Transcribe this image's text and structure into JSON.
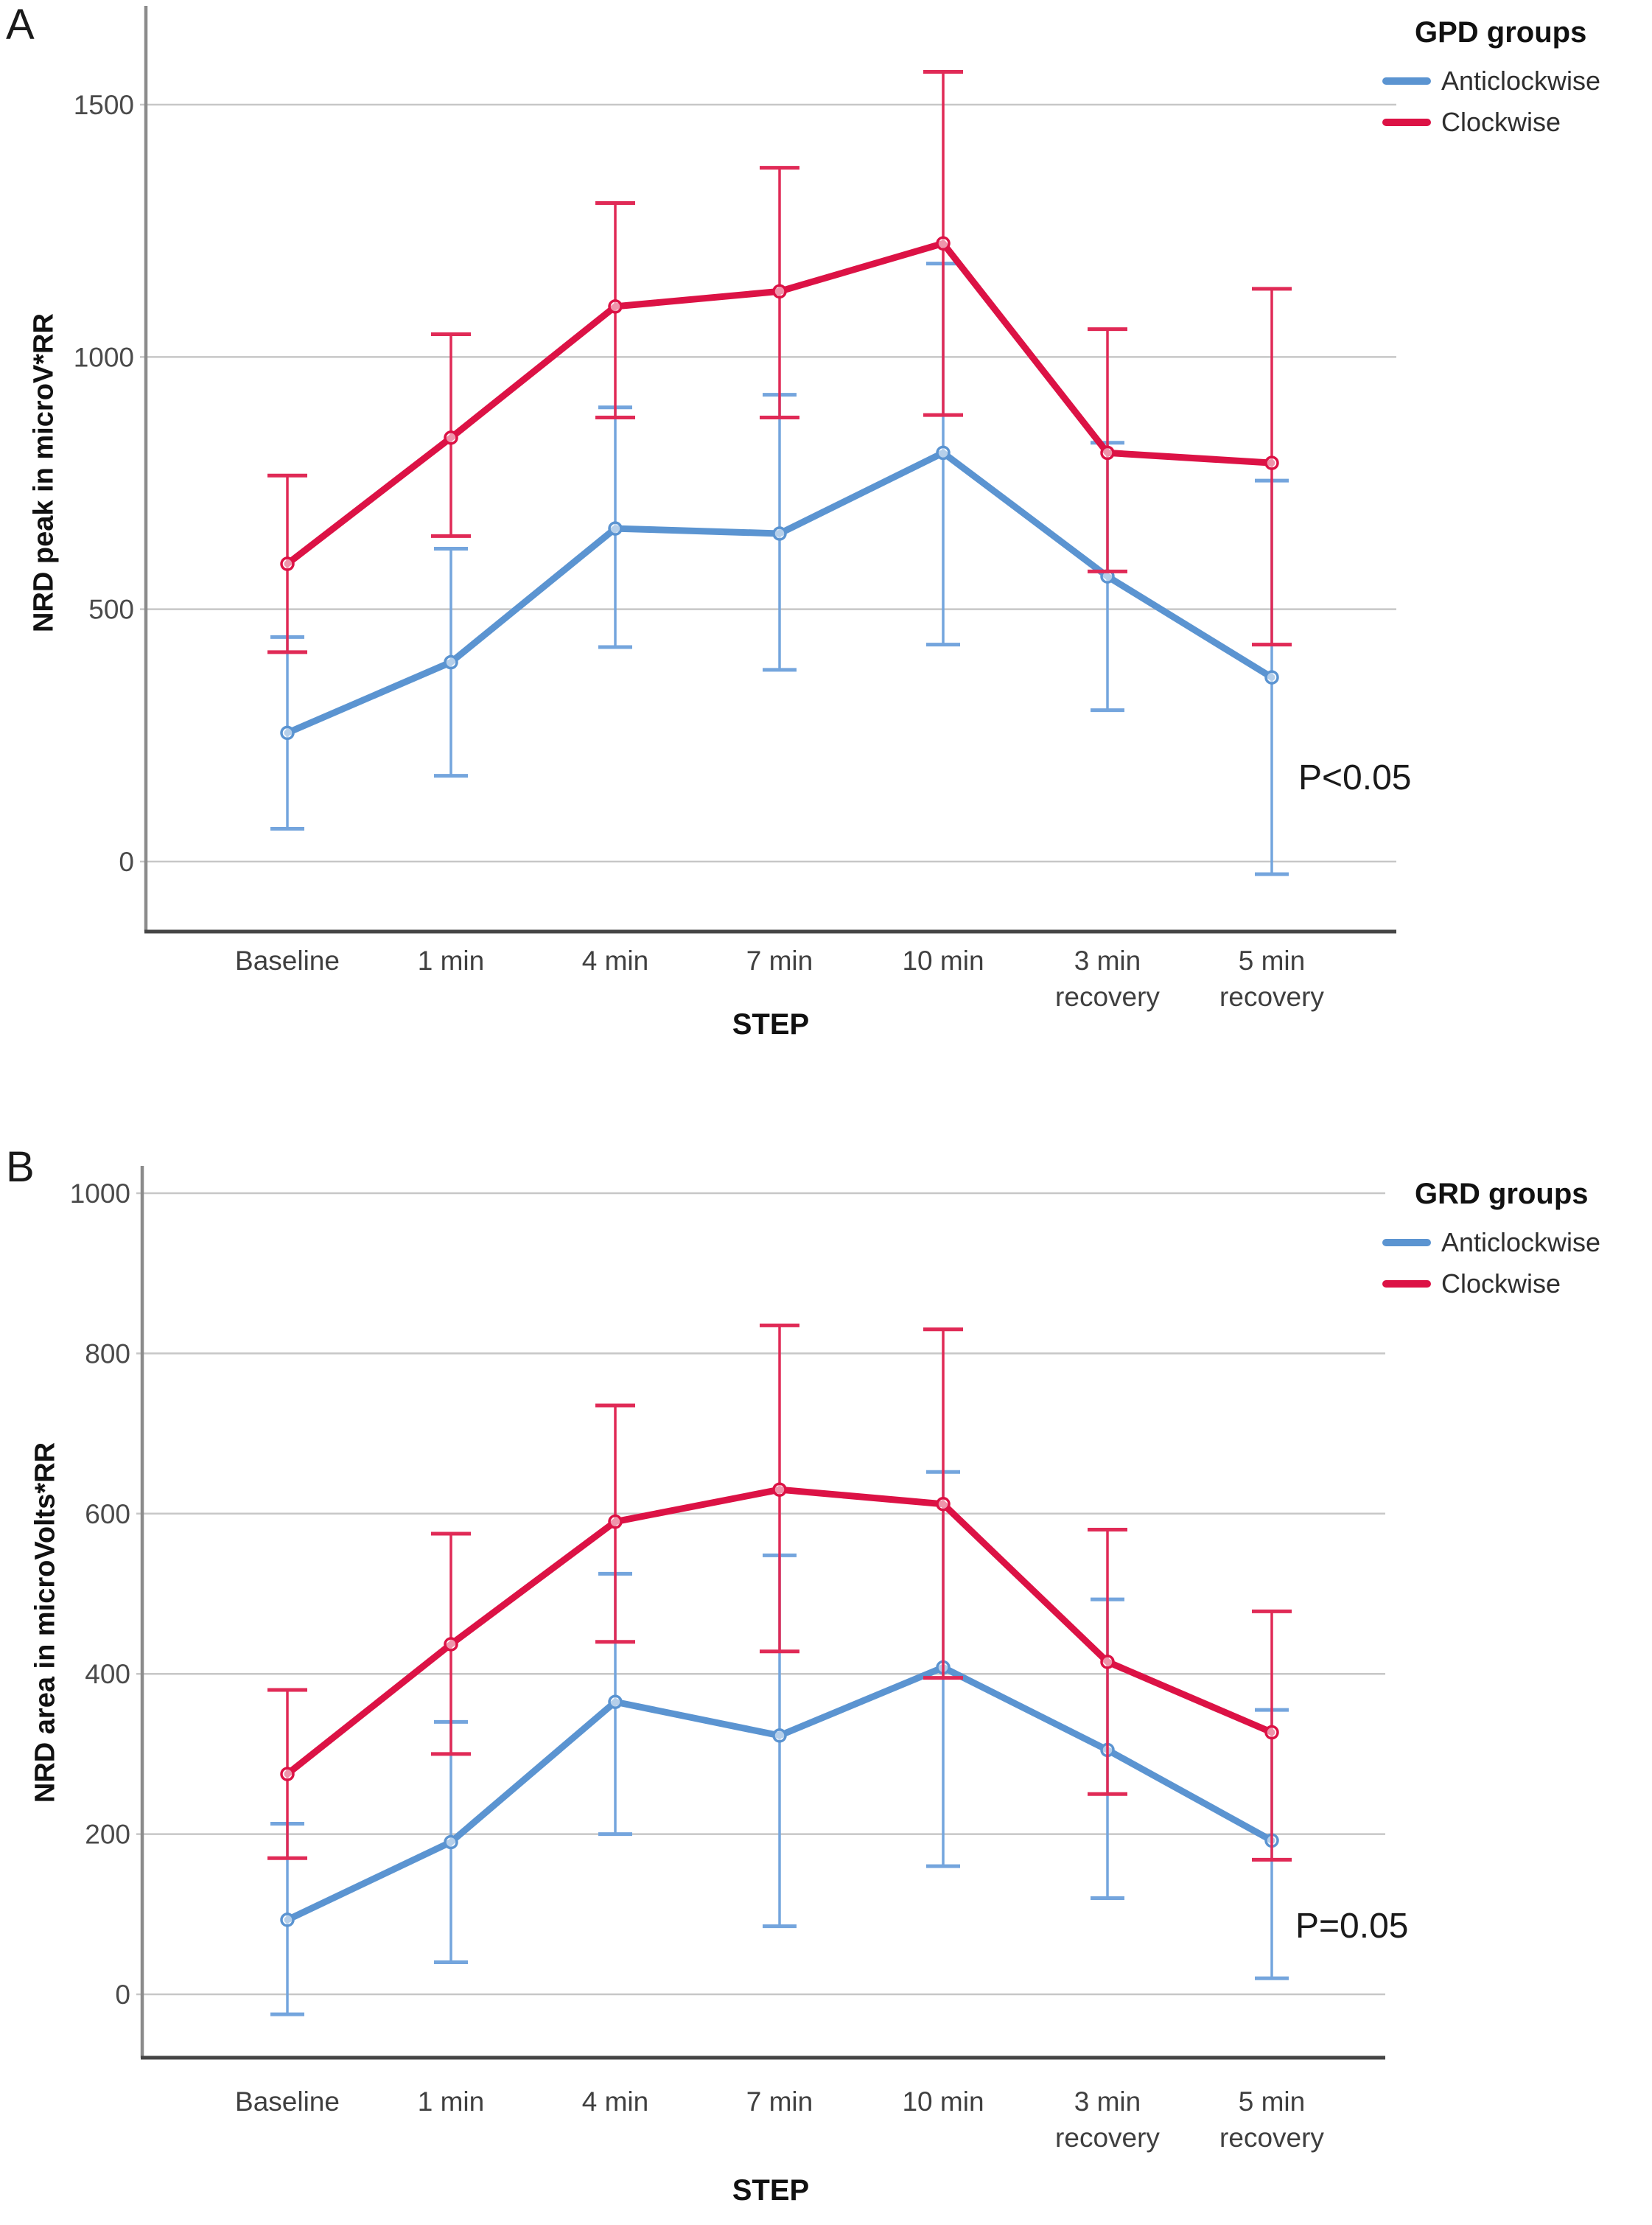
{
  "figure_type": "two-panel line chart with error bars",
  "chart_data": [
    {
      "panel_label": "A",
      "type": "line",
      "legend_title": "GPD groups",
      "legend_position": "top-right",
      "ylabel": "NRD peak in microV*RR",
      "xlabel": "STEP",
      "p_label": "P<0.05",
      "grid": "horizontal",
      "yticks": [
        0,
        500,
        1000,
        1500
      ],
      "ylim": [
        -140,
        1695
      ],
      "categories": [
        [
          "Baseline"
        ],
        [
          "1 min"
        ],
        [
          "4 min"
        ],
        [
          "7 min"
        ],
        [
          "10 min"
        ],
        [
          "3 min",
          "recovery"
        ],
        [
          "5 min",
          "recovery"
        ]
      ],
      "series": [
        {
          "name": "Anticlockwise",
          "color": "#5b94d1",
          "bar_color": "#74a5dd",
          "means": [
            255,
            395,
            660,
            650,
            810,
            565,
            365
          ],
          "upper": [
            445,
            620,
            900,
            925,
            1185,
            830,
            755
          ],
          "lower": [
            65,
            170,
            425,
            380,
            430,
            300,
            -25
          ]
        },
        {
          "name": "Clockwise",
          "color": "#dc1245",
          "bar_color": "#e02a56",
          "means": [
            590,
            840,
            1100,
            1130,
            1225,
            810,
            790
          ],
          "upper": [
            765,
            1045,
            1305,
            1375,
            1565,
            1055,
            1135
          ],
          "lower": [
            415,
            645,
            880,
            880,
            885,
            575,
            430
          ]
        }
      ]
    },
    {
      "panel_label": "B",
      "type": "line",
      "legend_title": "GRD groups",
      "legend_position": "top-right",
      "ylabel": "NRD area in microVolts*RR",
      "xlabel": "STEP",
      "p_label": "P=0.05",
      "grid": "horizontal",
      "yticks": [
        0,
        200,
        400,
        600,
        800,
        1000
      ],
      "ylim": [
        -80,
        1035
      ],
      "categories": [
        [
          "Baseline"
        ],
        [
          "1 min"
        ],
        [
          "4 min"
        ],
        [
          "7 min"
        ],
        [
          "10 min"
        ],
        [
          "3 min",
          "recovery"
        ],
        [
          "5 min",
          "recovery"
        ]
      ],
      "series": [
        {
          "name": "Anticlockwise",
          "color": "#5b94d1",
          "bar_color": "#74a5dd",
          "means": [
            93,
            190,
            365,
            323,
            408,
            305,
            192
          ],
          "upper": [
            213,
            340,
            525,
            548,
            652,
            493,
            355
          ],
          "lower": [
            -25,
            40,
            200,
            85,
            160,
            120,
            20
          ]
        },
        {
          "name": "Clockwise",
          "color": "#dc1245",
          "bar_color": "#e02a56",
          "means": [
            275,
            437,
            590,
            630,
            612,
            415,
            327
          ],
          "upper": [
            380,
            575,
            735,
            835,
            830,
            580,
            478
          ],
          "lower": [
            170,
            300,
            440,
            428,
            395,
            250,
            168
          ]
        }
      ]
    }
  ],
  "colors": {
    "anticlockwise": "#5b94d1",
    "clockwise": "#dc1245",
    "gridline": "#c7c7c7",
    "y_axis": "#8b8b8b",
    "x_axis": "#454545",
    "tick_text": "#4a4a4a"
  }
}
